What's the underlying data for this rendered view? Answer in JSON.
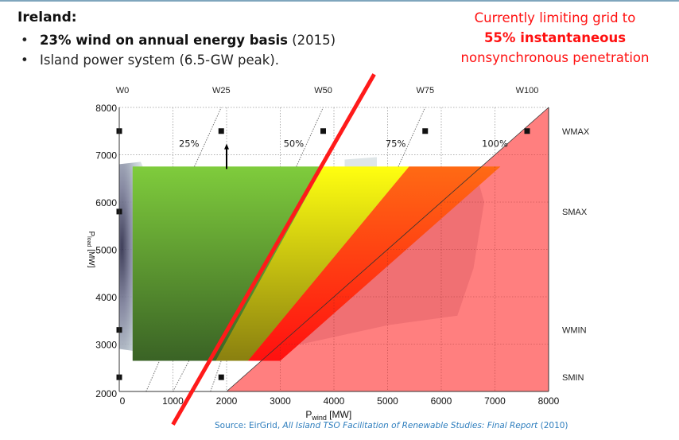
{
  "slide": {
    "title": "Ireland:",
    "bullets": [
      {
        "bold": "23% wind on annual energy basis",
        "rest": " (2015)"
      },
      {
        "bold": "",
        "rest": "Island power system (6.5-GW peak)."
      }
    ],
    "callout": {
      "line1": "Currently limiting grid to",
      "line2": "55% instantaneous",
      "line3": "nonsynchronous penetration"
    },
    "source": {
      "prefix": "Source: EirGrid, ",
      "title": "All Island TSO Facilitation of Renewable Studies: Final Report",
      "suffix": " (2010)"
    },
    "colors": {
      "callout": "#ff1010",
      "source": "#2d7dbd",
      "limit_line": "#ff1a1a"
    }
  },
  "chart_data": {
    "type": "area",
    "title": "",
    "xlabel": "P",
    "xlabel_sub": "wind",
    "xlabel_unit": " [MW]",
    "ylabel": "P",
    "ylabel_sub": "load",
    "ylabel_unit": " [MW]",
    "xlim": [
      0,
      8000
    ],
    "ylim": [
      2000,
      8000
    ],
    "grid": true,
    "x_ticks": [
      0,
      1000,
      2000,
      3000,
      4000,
      5000,
      6000,
      7000,
      8000
    ],
    "x_tick_labels": [
      "0",
      "1000",
      "2000",
      "3000",
      "4000",
      "5000",
      "6000",
      "7000",
      "8000"
    ],
    "y_ticks": [
      2000,
      3000,
      4000,
      5000,
      6000,
      7000,
      8000
    ],
    "y_tick_labels": [
      "2000",
      "3000",
      "4000",
      "5000",
      "6000",
      "7000",
      "8000"
    ],
    "top_labels": [
      {
        "label": "W0",
        "x": 0
      },
      {
        "label": "W25",
        "x": 1900
      },
      {
        "label": "W50",
        "x": 3800
      },
      {
        "label": "W75",
        "x": 5700
      },
      {
        "label": "W100",
        "x": 7600
      }
    ],
    "right_labels": [
      {
        "label": "WMAX",
        "y": 7500
      },
      {
        "label": "SMAX",
        "y": 5800
      },
      {
        "label": "WMIN",
        "y": 3300
      },
      {
        "label": "SMIN",
        "y": 2300
      }
    ],
    "penetration_lines": [
      {
        "label": "25%",
        "pct": 25
      },
      {
        "label": "50%",
        "pct": 50
      },
      {
        "label": "75%",
        "pct": 75
      },
      {
        "label": "100%",
        "pct": 100
      }
    ],
    "markers": [
      {
        "x": 0,
        "y": 7500
      },
      {
        "x": 1900,
        "y": 7500
      },
      {
        "x": 3800,
        "y": 7500
      },
      {
        "x": 5700,
        "y": 7500
      },
      {
        "x": 7600,
        "y": 7500
      },
      {
        "x": 0,
        "y": 5800
      },
      {
        "x": 0,
        "y": 3300
      },
      {
        "x": 0,
        "y": 2300
      },
      {
        "x": 1900,
        "y": 2300
      }
    ],
    "regions": [
      {
        "name": "green",
        "polygon": [
          [
            250,
            6750
          ],
          [
            3800,
            6750
          ],
          [
            1800,
            2650
          ],
          [
            250,
            2650
          ]
        ],
        "color_top": "#7fcc3c",
        "color_bottom": "#3a6325"
      },
      {
        "name": "yellow",
        "polygon": [
          [
            3800,
            6750
          ],
          [
            5400,
            6750
          ],
          [
            2400,
            2650
          ],
          [
            1800,
            2650
          ]
        ],
        "color_top": "#ffff10",
        "color_bottom": "#8a8010"
      },
      {
        "name": "orange",
        "polygon": [
          [
            5400,
            6750
          ],
          [
            7100,
            6750
          ],
          [
            3000,
            2650
          ],
          [
            2400,
            2650
          ]
        ],
        "color_top": "#ff6a14",
        "color_bottom": "#ff1010"
      },
      {
        "name": "infeasible",
        "polygon": [
          [
            2000,
            2000
          ],
          [
            8000,
            8000
          ],
          [
            8000,
            2000
          ]
        ],
        "color": "#ff7f7f"
      }
    ],
    "limit_line": {
      "label": "",
      "from": [
        1000,
        1300
      ],
      "to": [
        4750,
        8700
      ]
    },
    "arrow": {
      "x": 2000,
      "y_from": 6700,
      "y_to": 7200
    }
  }
}
